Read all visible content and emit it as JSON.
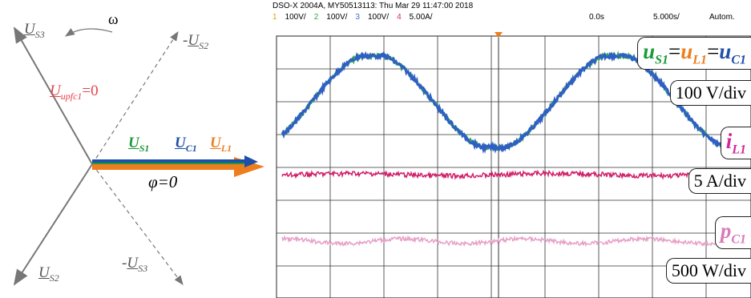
{
  "phasor": {
    "omega": "ω",
    "phi": "φ=0",
    "labels": [
      {
        "base": "U",
        "sub": "S3",
        "color": "#555555"
      },
      {
        "prefix": "-",
        "base": "U",
        "sub": "S2",
        "color": "#555555"
      },
      {
        "base": "U",
        "sub": "upfc1",
        "suffix": "=0",
        "color": "#e8424a"
      },
      {
        "base": "U",
        "sub": "S1",
        "color": "#1a9a3a"
      },
      {
        "base": "U",
        "sub": "C1",
        "color": "#1f4fa8"
      },
      {
        "base": "U",
        "sub": "L1",
        "color": "#ee7d1e"
      },
      {
        "base": "U",
        "sub": "S2",
        "color": "#555555"
      },
      {
        "prefix": "-",
        "base": "U",
        "sub": "S3",
        "color": "#555555"
      }
    ]
  },
  "scope": {
    "header": "DSO-X 2004A, MY50513113: Thu Mar 29 11:47:00 2018",
    "channels": [
      {
        "num": "1",
        "scale": "100V/",
        "color": "#d9a400"
      },
      {
        "num": "2",
        "scale": "100V/",
        "color": "#2fa84f"
      },
      {
        "num": "3",
        "scale": "100V/",
        "color": "#3a6fd0"
      },
      {
        "num": "4",
        "scale": "5.00A/",
        "color": "#d02a7a"
      }
    ],
    "delay": "0.0s",
    "timebase": "5.000s/",
    "mode": "Autom.",
    "labels": [
      {
        "segments": [
          {
            "text": "u",
            "sub": "S1",
            "color": "#1a9a3a"
          },
          {
            "text": "="
          },
          {
            "text": "u",
            "sub": "L1",
            "color": "#ee7d1e"
          },
          {
            "text": "="
          },
          {
            "text": "u",
            "sub": "C1",
            "color": "#1f4fa8"
          }
        ]
      },
      {
        "segments": [
          {
            "text": "100 V/div"
          }
        ]
      },
      {
        "segments": [
          {
            "text": "i",
            "sub": "L1",
            "color": "#d02a9a"
          }
        ]
      },
      {
        "segments": [
          {
            "text": "5 A/div"
          }
        ]
      },
      {
        "segments": [
          {
            "text": "p",
            "sub": "C1",
            "color": "#d77ab8"
          }
        ]
      },
      {
        "segments": [
          {
            "text": "500 W/div"
          }
        ]
      }
    ]
  }
}
